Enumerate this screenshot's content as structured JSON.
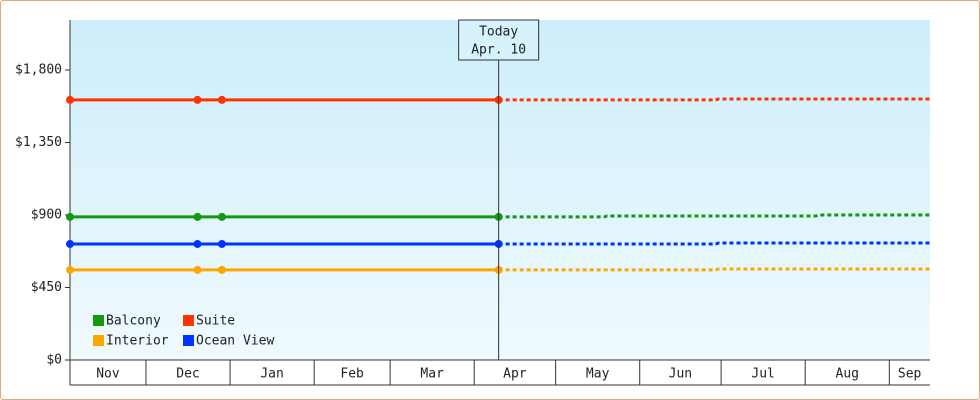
{
  "chart_data": {
    "type": "line",
    "xlim": [
      2,
      319
    ],
    "ylim": [
      0,
      2110
    ],
    "xticks": [
      {
        "value": 0,
        "label": "Nov"
      },
      {
        "value": 30,
        "label": "Dec"
      },
      {
        "value": 61,
        "label": "Jan"
      },
      {
        "value": 92,
        "label": "Feb"
      },
      {
        "value": 120,
        "label": "Mar"
      },
      {
        "value": 151,
        "label": "Apr"
      },
      {
        "value": 181,
        "label": "May"
      },
      {
        "value": 212,
        "label": "Jun"
      },
      {
        "value": 242,
        "label": "Jul"
      },
      {
        "value": 273,
        "label": "Aug"
      },
      {
        "value": 304,
        "label": "Sep"
      }
    ],
    "yticks": [
      {
        "value": 0,
        "label": "$0"
      },
      {
        "value": 450,
        "label": "$450"
      },
      {
        "value": 900,
        "label": "$900"
      },
      {
        "value": 1350,
        "label": "$1,350"
      },
      {
        "value": 1800,
        "label": "$1,800"
      }
    ],
    "today": {
      "x": 160,
      "label": "Today",
      "date": "Apr. 10"
    },
    "legend": "lower left",
    "series": [
      {
        "name": "Balcony",
        "color": "#119911",
        "x": [
          2,
          49,
          58,
          160
        ],
        "values": [
          888,
          888,
          888,
          888
        ],
        "forecast_x": [
          160,
          199,
          200,
          277,
          278,
          319
        ],
        "forecast_values": [
          888,
          888,
          894,
          894,
          900,
          900
        ]
      },
      {
        "name": "Suite",
        "color": "#ff3300",
        "x": [
          2,
          49,
          58,
          160
        ],
        "values": [
          1614,
          1614,
          1614,
          1614
        ],
        "forecast_x": [
          160,
          240,
          241,
          319
        ],
        "forecast_values": [
          1614,
          1614,
          1620,
          1620
        ]
      },
      {
        "name": "Interior",
        "color": "#ffa500",
        "x": [
          2,
          49,
          58,
          160
        ],
        "values": [
          559,
          559,
          559,
          559
        ],
        "forecast_x": [
          160,
          240,
          241,
          319
        ],
        "forecast_values": [
          559,
          559,
          565,
          565
        ]
      },
      {
        "name": "Ocean View",
        "color": "#0033ff",
        "x": [
          2,
          49,
          58,
          160
        ],
        "values": [
          720,
          720,
          720,
          720
        ],
        "forecast_x": [
          160,
          240,
          241,
          319
        ],
        "forecast_values": [
          720,
          720,
          726,
          726
        ]
      }
    ]
  }
}
